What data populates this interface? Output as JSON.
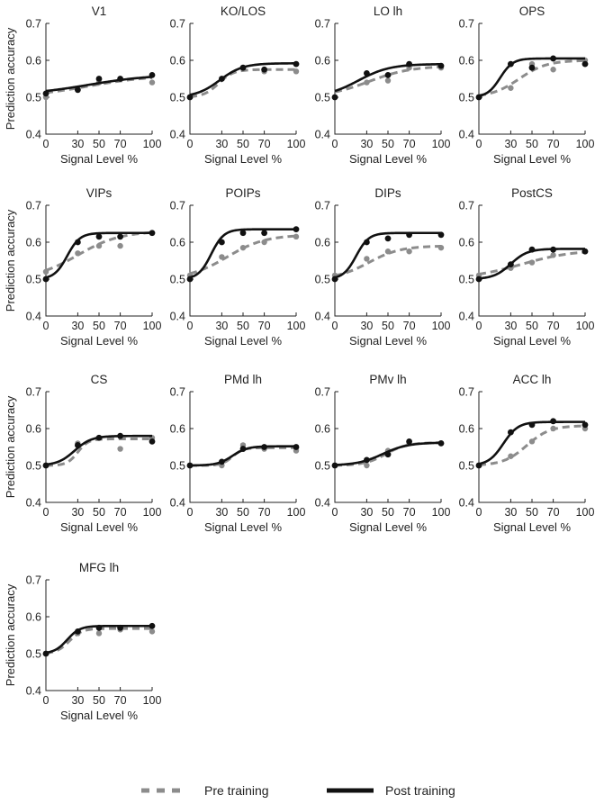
{
  "legend": {
    "pre_label": "Pre training",
    "post_label": "Post training",
    "pre_color": "#8c8c8c",
    "post_color": "#111111"
  },
  "chart_data": [
    {
      "type": "line",
      "title": "V1",
      "xlabel": "Signal Level %",
      "ylabel": "Prediction accuracy",
      "xlim": [
        0,
        100
      ],
      "ylim": [
        0.4,
        0.7
      ],
      "xticks": [
        0,
        30,
        50,
        70,
        100
      ],
      "yticks": [
        0.4,
        0.5,
        0.6,
        0.7
      ],
      "x": [
        0,
        30,
        50,
        70,
        100
      ],
      "series": [
        {
          "name": "Pre training",
          "points": [
            0.5,
            0.52,
            0.54,
            0.55,
            0.54
          ],
          "fit": {
            "base": 0.5,
            "top": 0.56,
            "mid": 40,
            "slope": 30
          }
        },
        {
          "name": "Post training",
          "points": [
            0.51,
            0.52,
            0.55,
            0.55,
            0.56
          ],
          "fit": {
            "base": 0.505,
            "top": 0.562,
            "mid": 40,
            "slope": 30
          }
        }
      ]
    },
    {
      "type": "line",
      "title": "KO/LOS",
      "xlabel": "Signal Level %",
      "ylabel": "Prediction accuracy",
      "xlim": [
        0,
        100
      ],
      "ylim": [
        0.4,
        0.7
      ],
      "xticks": [
        0,
        30,
        50,
        70,
        100
      ],
      "yticks": [
        0.4,
        0.5,
        0.6,
        0.7
      ],
      "x": [
        0,
        30,
        50,
        70,
        100
      ],
      "series": [
        {
          "name": "Pre training",
          "points": [
            0.5,
            0.55,
            0.58,
            0.57,
            0.57
          ],
          "fit": {
            "base": 0.5,
            "top": 0.575,
            "mid": 27,
            "slope": 7
          }
        },
        {
          "name": "Post training",
          "points": [
            0.5,
            0.55,
            0.58,
            0.575,
            0.59
          ],
          "fit": {
            "base": 0.5,
            "top": 0.592,
            "mid": 28,
            "slope": 11
          }
        }
      ]
    },
    {
      "type": "line",
      "title": "LO lh",
      "xlabel": "Signal Level %",
      "ylabel": "Prediction accuracy",
      "xlim": [
        0,
        100
      ],
      "ylim": [
        0.4,
        0.7
      ],
      "xticks": [
        0,
        30,
        50,
        70,
        100
      ],
      "yticks": [
        0.4,
        0.5,
        0.6,
        0.7
      ],
      "x": [
        0,
        30,
        50,
        70,
        100
      ],
      "series": [
        {
          "name": "Pre training",
          "points": [
            0.5,
            0.54,
            0.545,
            0.58,
            0.58
          ],
          "fit": {
            "base": 0.5,
            "top": 0.585,
            "mid": 32,
            "slope": 20
          }
        },
        {
          "name": "Post training",
          "points": [
            0.5,
            0.565,
            0.56,
            0.59,
            0.585
          ],
          "fit": {
            "base": 0.5,
            "top": 0.59,
            "mid": 22,
            "slope": 15
          }
        }
      ]
    },
    {
      "type": "line",
      "title": "OPS",
      "xlabel": "Signal Level %",
      "ylabel": "Prediction accuracy",
      "xlim": [
        0,
        100
      ],
      "ylim": [
        0.4,
        0.7
      ],
      "xticks": [
        0,
        30,
        50,
        70,
        100
      ],
      "yticks": [
        0.4,
        0.5,
        0.6,
        0.7
      ],
      "x": [
        0,
        30,
        50,
        70,
        100
      ],
      "series": [
        {
          "name": "Pre training",
          "points": [
            0.5,
            0.525,
            0.59,
            0.575,
            0.6
          ],
          "fit": {
            "base": 0.5,
            "top": 0.6,
            "mid": 38,
            "slope": 13
          }
        },
        {
          "name": "Post training",
          "points": [
            0.5,
            0.59,
            0.58,
            0.605,
            0.59
          ],
          "fit": {
            "base": 0.5,
            "top": 0.605,
            "mid": 20,
            "slope": 6
          }
        }
      ]
    },
    {
      "type": "line",
      "title": "VIPs",
      "xlabel": "Signal Level %",
      "ylabel": "Prediction accuracy",
      "xlim": [
        0,
        100
      ],
      "ylim": [
        0.4,
        0.7
      ],
      "xticks": [
        0,
        30,
        50,
        70,
        100
      ],
      "yticks": [
        0.4,
        0.5,
        0.6,
        0.7
      ],
      "x": [
        0,
        30,
        50,
        70,
        100
      ],
      "series": [
        {
          "name": "Pre training",
          "points": [
            0.52,
            0.57,
            0.59,
            0.59,
            0.625
          ],
          "fit": {
            "base": 0.5,
            "top": 0.63,
            "mid": 30,
            "slope": 20
          }
        },
        {
          "name": "Post training",
          "points": [
            0.5,
            0.6,
            0.615,
            0.615,
            0.625
          ],
          "fit": {
            "base": 0.5,
            "top": 0.625,
            "mid": 20,
            "slope": 6
          }
        }
      ]
    },
    {
      "type": "line",
      "title": "POIPs",
      "xlabel": "Signal Level %",
      "ylabel": "Prediction accuracy",
      "xlim": [
        0,
        100
      ],
      "ylim": [
        0.4,
        0.7
      ],
      "xticks": [
        0,
        30,
        50,
        70,
        100
      ],
      "yticks": [
        0.4,
        0.5,
        0.6,
        0.7
      ],
      "x": [
        0,
        30,
        50,
        70,
        100
      ],
      "series": [
        {
          "name": "Pre training",
          "points": [
            0.51,
            0.56,
            0.585,
            0.6,
            0.615
          ],
          "fit": {
            "base": 0.5,
            "top": 0.62,
            "mid": 35,
            "slope": 18
          }
        },
        {
          "name": "Post training",
          "points": [
            0.5,
            0.6,
            0.625,
            0.625,
            0.635
          ],
          "fit": {
            "base": 0.5,
            "top": 0.635,
            "mid": 20,
            "slope": 6
          }
        }
      ]
    },
    {
      "type": "line",
      "title": "DIPs",
      "xlabel": "Signal Level %",
      "ylabel": "Prediction accuracy",
      "xlim": [
        0,
        100
      ],
      "ylim": [
        0.4,
        0.7
      ],
      "xticks": [
        0,
        30,
        50,
        70,
        100
      ],
      "yticks": [
        0.4,
        0.5,
        0.6,
        0.7
      ],
      "x": [
        0,
        30,
        50,
        70,
        100
      ],
      "series": [
        {
          "name": "Pre training",
          "points": [
            0.51,
            0.555,
            0.575,
            0.575,
            0.585
          ],
          "fit": {
            "base": 0.5,
            "top": 0.59,
            "mid": 32,
            "slope": 15
          }
        },
        {
          "name": "Post training",
          "points": [
            0.5,
            0.6,
            0.61,
            0.62,
            0.62
          ],
          "fit": {
            "base": 0.5,
            "top": 0.625,
            "mid": 20,
            "slope": 6
          }
        }
      ]
    },
    {
      "type": "line",
      "title": "PostCS",
      "xlabel": "Signal Level %",
      "ylabel": "Prediction accuracy",
      "xlim": [
        0,
        100
      ],
      "ylim": [
        0.4,
        0.7
      ],
      "xticks": [
        0,
        30,
        50,
        70,
        100
      ],
      "yticks": [
        0.4,
        0.5,
        0.6,
        0.7
      ],
      "x": [
        0,
        30,
        50,
        70,
        100
      ],
      "series": [
        {
          "name": "Pre training",
          "points": [
            0.51,
            0.53,
            0.545,
            0.565,
            0.575
          ],
          "fit": {
            "base": 0.5,
            "top": 0.58,
            "mid": 40,
            "slope": 25
          }
        },
        {
          "name": "Post training",
          "points": [
            0.5,
            0.54,
            0.58,
            0.58,
            0.575
          ],
          "fit": {
            "base": 0.5,
            "top": 0.582,
            "mid": 30,
            "slope": 8
          }
        }
      ]
    },
    {
      "type": "line",
      "title": "CS",
      "xlabel": "Signal Level %",
      "ylabel": "Prediction accuracy",
      "xlim": [
        0,
        100
      ],
      "ylim": [
        0.4,
        0.7
      ],
      "xticks": [
        0,
        30,
        50,
        70,
        100
      ],
      "yticks": [
        0.4,
        0.5,
        0.6,
        0.7
      ],
      "x": [
        0,
        30,
        50,
        70,
        100
      ],
      "series": [
        {
          "name": "Pre training",
          "points": [
            0.5,
            0.56,
            0.575,
            0.545,
            0.575
          ],
          "fit": {
            "base": 0.5,
            "top": 0.572,
            "mid": 30,
            "slope": 5
          }
        },
        {
          "name": "Post training",
          "points": [
            0.5,
            0.555,
            0.575,
            0.58,
            0.565
          ],
          "fit": {
            "base": 0.5,
            "top": 0.58,
            "mid": 27,
            "slope": 8
          }
        }
      ]
    },
    {
      "type": "line",
      "title": "PMd lh",
      "xlabel": "Signal Level %",
      "ylabel": "Prediction accuracy",
      "xlim": [
        0,
        100
      ],
      "ylim": [
        0.4,
        0.7
      ],
      "xticks": [
        0,
        30,
        50,
        70,
        100
      ],
      "yticks": [
        0.4,
        0.5,
        0.6,
        0.7
      ],
      "x": [
        0,
        30,
        50,
        70,
        100
      ],
      "series": [
        {
          "name": "Pre training",
          "points": [
            0.5,
            0.5,
            0.555,
            0.545,
            0.54
          ],
          "fit": {
            "base": 0.5,
            "top": 0.548,
            "mid": 40,
            "slope": 5
          }
        },
        {
          "name": "Post training",
          "points": [
            0.5,
            0.51,
            0.545,
            0.55,
            0.55
          ],
          "fit": {
            "base": 0.5,
            "top": 0.552,
            "mid": 40,
            "slope": 7
          }
        }
      ]
    },
    {
      "type": "line",
      "title": "PMv lh",
      "xlabel": "Signal Level %",
      "ylabel": "Prediction accuracy",
      "xlim": [
        0,
        100
      ],
      "ylim": [
        0.4,
        0.7
      ],
      "xticks": [
        0,
        30,
        50,
        70,
        100
      ],
      "yticks": [
        0.4,
        0.5,
        0.6,
        0.7
      ],
      "x": [
        0,
        30,
        50,
        70,
        100
      ],
      "series": [
        {
          "name": "Pre training",
          "points": [
            0.5,
            0.5,
            0.54,
            0.56,
            0.56
          ],
          "fit": {
            "base": 0.5,
            "top": 0.562,
            "mid": 48,
            "slope": 10
          }
        },
        {
          "name": "Post training",
          "points": [
            0.5,
            0.515,
            0.53,
            0.565,
            0.56
          ],
          "fit": {
            "base": 0.5,
            "top": 0.562,
            "mid": 45,
            "slope": 12
          }
        }
      ]
    },
    {
      "type": "line",
      "title": "ACC lh",
      "xlabel": "Signal Level %",
      "ylabel": "Prediction accuracy",
      "xlim": [
        0,
        100
      ],
      "ylim": [
        0.4,
        0.7
      ],
      "xticks": [
        0,
        30,
        50,
        70,
        100
      ],
      "yticks": [
        0.4,
        0.5,
        0.6,
        0.7
      ],
      "x": [
        0,
        30,
        50,
        70,
        100
      ],
      "series": [
        {
          "name": "Pre training",
          "points": [
            0.5,
            0.525,
            0.565,
            0.6,
            0.6
          ],
          "fit": {
            "base": 0.5,
            "top": 0.608,
            "mid": 45,
            "slope": 11
          }
        },
        {
          "name": "Post training",
          "points": [
            0.5,
            0.59,
            0.61,
            0.62,
            0.61
          ],
          "fit": {
            "base": 0.5,
            "top": 0.618,
            "mid": 23,
            "slope": 7
          }
        }
      ]
    },
    {
      "type": "line",
      "title": "MFG lh",
      "xlabel": "Signal Level %",
      "ylabel": "Prediction accuracy",
      "xlim": [
        0,
        100
      ],
      "ylim": [
        0.4,
        0.7
      ],
      "xticks": [
        0,
        30,
        50,
        70,
        100
      ],
      "yticks": [
        0.4,
        0.5,
        0.6,
        0.7
      ],
      "x": [
        0,
        30,
        50,
        70,
        100
      ],
      "series": [
        {
          "name": "Pre training",
          "points": [
            0.5,
            0.555,
            0.555,
            0.565,
            0.56
          ],
          "fit": {
            "base": 0.5,
            "top": 0.568,
            "mid": 22,
            "slope": 6
          }
        },
        {
          "name": "Post training",
          "points": [
            0.5,
            0.56,
            0.57,
            0.57,
            0.575
          ],
          "fit": {
            "base": 0.5,
            "top": 0.575,
            "mid": 20,
            "slope": 6
          }
        }
      ]
    }
  ]
}
